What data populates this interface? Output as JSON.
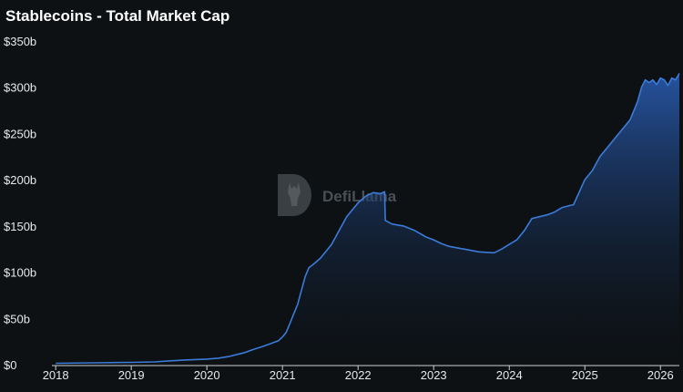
{
  "chart_data": {
    "type": "area",
    "title": "Stablecoins - Total Market Cap",
    "watermark": "DefiLlama",
    "line_color": "#3b7bd9",
    "fill_color": "#2a5fb8",
    "background": "#0d1114",
    "x_ticks": [
      "2018",
      "2019",
      "2020",
      "2021",
      "2022",
      "2023",
      "2024",
      "2025",
      "2026"
    ],
    "y_ticks": [
      "$0",
      "$50b",
      "$100b",
      "$150b",
      "$200b",
      "$250b",
      "$300b",
      "$350b"
    ],
    "y_tick_values": [
      0,
      50,
      100,
      150,
      200,
      250,
      300,
      350
    ],
    "x_range": [
      2017.95,
      2026.25
    ],
    "y_range": [
      0,
      350
    ],
    "units": "billions USD",
    "grid": false,
    "series": [
      {
        "x": [
          2018.0,
          2018.5,
          2019.0,
          2019.3,
          2019.5,
          2019.7,
          2020.0,
          2020.15,
          2020.3,
          2020.4,
          2020.5,
          2020.6,
          2020.75,
          2020.85,
          2020.95,
          2021.0,
          2021.05,
          2021.1,
          2021.15,
          2021.2,
          2021.25,
          2021.3,
          2021.35,
          2021.4,
          2021.5,
          2021.6,
          2021.65,
          2021.75,
          2021.85,
          2021.9,
          2022.0,
          2022.1,
          2022.2,
          2022.3,
          2022.35,
          2022.36,
          2022.45,
          2022.6,
          2022.75,
          2022.9,
          2023.0,
          2023.1,
          2023.2,
          2023.4,
          2023.6,
          2023.8,
          2023.9,
          2024.0,
          2024.1,
          2024.2,
          2024.3,
          2024.5,
          2024.6,
          2024.7,
          2024.8,
          2024.85,
          2025.0,
          2025.1,
          2025.2,
          2025.3,
          2025.4,
          2025.5,
          2025.6,
          2025.7,
          2025.75,
          2025.8,
          2025.85,
          2025.9,
          2025.95,
          2026.0,
          2026.05,
          2026.1,
          2026.15,
          2026.2,
          2026.25
        ],
        "y": [
          1.5,
          2,
          2.5,
          3,
          4,
          5,
          6,
          7,
          9,
          11,
          13,
          16,
          20,
          23,
          26,
          30,
          35,
          45,
          55,
          65,
          80,
          95,
          105,
          108,
          115,
          125,
          130,
          145,
          160,
          165,
          175,
          182,
          186,
          185,
          187,
          156,
          152,
          150,
          145,
          138,
          135,
          131,
          128,
          125,
          122,
          121,
          125,
          130,
          135,
          145,
          158,
          162,
          165,
          170,
          172,
          173,
          200,
          210,
          225,
          235,
          245,
          255,
          265,
          285,
          300,
          308,
          305,
          308,
          303,
          310,
          308,
          302,
          310,
          308,
          315
        ]
      }
    ]
  }
}
